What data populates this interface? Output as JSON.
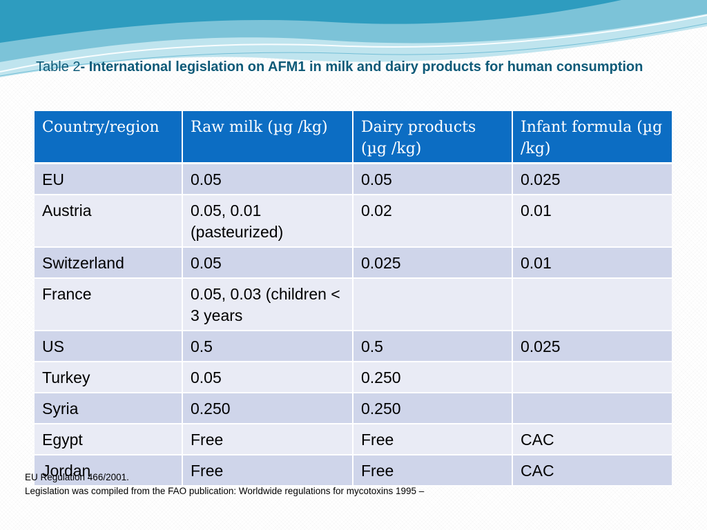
{
  "slide": {
    "title_prefix": "Table 2",
    "title_main": "- International legislation on AFM1 in milk and dairy products for human consumption"
  },
  "colors": {
    "title": "#0e5a78",
    "header_bg": "#0c6dc3",
    "row_dark": "#cfd5ea",
    "row_light": "#e9ebf5",
    "wave_light": "#bfe4ee",
    "wave_mid": "#7cc3d8",
    "wave_dark": "#2e9cbf"
  },
  "table": {
    "headers": {
      "country": "Country/region",
      "raw_milk": "Raw milk (µg /kg)",
      "dairy_products": "Dairy products (µg /kg)",
      "infant_formula": "Infant formula (µg /kg)"
    },
    "rows": [
      {
        "country": "EU",
        "raw_milk": "0.05",
        "dairy_products": "0.05",
        "infant_formula": "0.025"
      },
      {
        "country": "Austria",
        "raw_milk": "0.05, 0.01 (pasteurized)",
        "dairy_products": "0.02",
        "infant_formula": "0.01"
      },
      {
        "country": "Switzerland",
        "raw_milk": "0.05",
        "dairy_products": "0.025",
        "infant_formula": "0.01"
      },
      {
        "country": "France",
        "raw_milk": "0.05, 0.03 (children < 3 years",
        "dairy_products": "",
        "infant_formula": ""
      },
      {
        "country": "US",
        "raw_milk": "0.5",
        "dairy_products": "0.5",
        "infant_formula": "0.025"
      },
      {
        "country": "Turkey",
        "raw_milk": "0.05",
        "dairy_products": "0.250",
        "infant_formula": ""
      },
      {
        "country": "Syria",
        "raw_milk": "0.250",
        "dairy_products": "0.250",
        "infant_formula": ""
      },
      {
        "country": "Egypt",
        "raw_milk": "Free",
        "dairy_products": "Free",
        "infant_formula": "CAC"
      },
      {
        "country": "Jordan",
        "raw_milk": "Free",
        "dairy_products": "Free",
        "infant_formula": "CAC"
      }
    ]
  },
  "footnotes": {
    "line1": "EU Regulation 466/2001.",
    "line2": "Legislation was compiled from the FAO publication: Worldwide regulations for mycotoxins 1995 –"
  }
}
